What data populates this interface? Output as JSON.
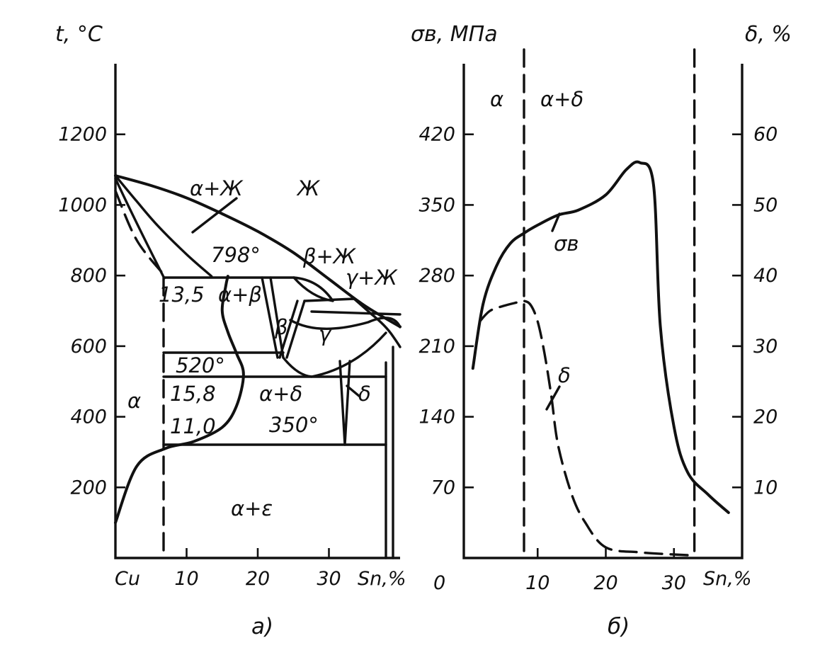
{
  "chart_data": [
    {
      "id": "a",
      "type": "line",
      "caption": "a)",
      "ylabel": "t, °C",
      "xlabel": "Sn,%",
      "x_origin_label": "Cu",
      "ylim": [
        0,
        1400
      ],
      "xlim": [
        0,
        40
      ],
      "x_ticks": [
        10,
        20,
        30
      ],
      "y_ticks": [
        200,
        400,
        600,
        800,
        1000,
        1200
      ],
      "region_labels": [
        "α+Ж",
        "Ж",
        "798°",
        "β+Ж",
        "γ+Ж",
        "13,5",
        "α+β",
        "β",
        "γ",
        "520°",
        "15,8",
        "α+δ",
        "δ",
        "α",
        "11,0",
        "350°",
        "α+ε"
      ],
      "series": [
        {
          "role": "liquidus",
          "style": "solid",
          "x": [
            0,
            5,
            10,
            15,
            20,
            25,
            30,
            35,
            40
          ],
          "y": [
            1083,
            1055,
            1020,
            975,
            925,
            865,
            790,
            715,
            655
          ]
        },
        {
          "role": "solidus",
          "style": "solid",
          "x": [
            0,
            3,
            6,
            10,
            13.5
          ],
          "y": [
            1083,
            1010,
            940,
            860,
            798
          ]
        },
        {
          "role": "alpha-solvus-high",
          "style": "dashed",
          "x": [
            0,
            3,
            7
          ],
          "y": [
            1040,
            900,
            798
          ]
        },
        {
          "role": "alpha-solvus-low",
          "style": "solid",
          "x": [
            0,
            3,
            7,
            11,
            15,
            17,
            18,
            17,
            15.8,
            15,
            15.5,
            15.8
          ],
          "y": [
            100,
            260,
            310,
            330,
            370,
            430,
            520,
            580,
            640,
            700,
            770,
            798
          ]
        }
      ],
      "isotherms_c": [
        798,
        520,
        350
      ]
    },
    {
      "id": "b",
      "type": "line",
      "caption": "б)",
      "ylabel_left": "σв, МПа",
      "ylabel_right": "δ, %",
      "xlabel": "Sn,%",
      "x_origin_label": "0",
      "xlim": [
        0,
        40
      ],
      "ylim_left": [
        0,
        490
      ],
      "ylim_right": [
        0,
        70
      ],
      "x_ticks": [
        10,
        20,
        30
      ],
      "y_ticks_left": [
        70,
        140,
        210,
        280,
        350,
        420
      ],
      "y_ticks_right": [
        10,
        20,
        30,
        40,
        50,
        60
      ],
      "phase_boundaries_x": [
        8,
        33
      ],
      "region_labels": [
        "α",
        "α+δ"
      ],
      "series": [
        {
          "name": "σв",
          "axis": "left",
          "style": "solid",
          "x": [
            0.5,
            2,
            4,
            6,
            8,
            10,
            13,
            16,
            20,
            23,
            25,
            27,
            28,
            30,
            32,
            35,
            38
          ],
          "y": [
            188,
            252,
            290,
            312,
            322,
            330,
            340,
            345,
            360,
            385,
            392,
            370,
            230,
            130,
            85,
            63,
            45
          ]
        },
        {
          "name": "δ",
          "axis": "right",
          "style": "dashed",
          "x": [
            1.5,
            3,
            5,
            7,
            8,
            9,
            10,
            11,
            12,
            13,
            15,
            17,
            20,
            25,
            32
          ],
          "y": [
            33.5,
            35,
            35.7,
            36.2,
            36.4,
            35.8,
            33.5,
            29,
            23,
            16,
            9,
            5,
            1.5,
            0.8,
            0.4
          ]
        }
      ]
    }
  ]
}
